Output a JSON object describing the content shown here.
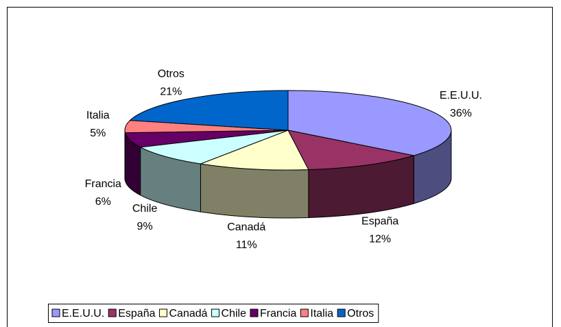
{
  "chart_data": {
    "type": "pie",
    "three_d": true,
    "categories": [
      "E.E.U.U.",
      "España",
      "Canadá",
      "Chile",
      "Francia",
      "Italia",
      "Otros"
    ],
    "values": [
      36,
      12,
      11,
      9,
      6,
      5,
      21
    ],
    "value_labels": [
      "36%",
      "12%",
      "11%",
      "9%",
      "6%",
      "5%",
      "21%"
    ],
    "colors": [
      "#9999ff",
      "#993366",
      "#ffffcc",
      "#ccffff",
      "#660066",
      "#ff8080",
      "#0066cc"
    ],
    "legend": "bottom"
  }
}
